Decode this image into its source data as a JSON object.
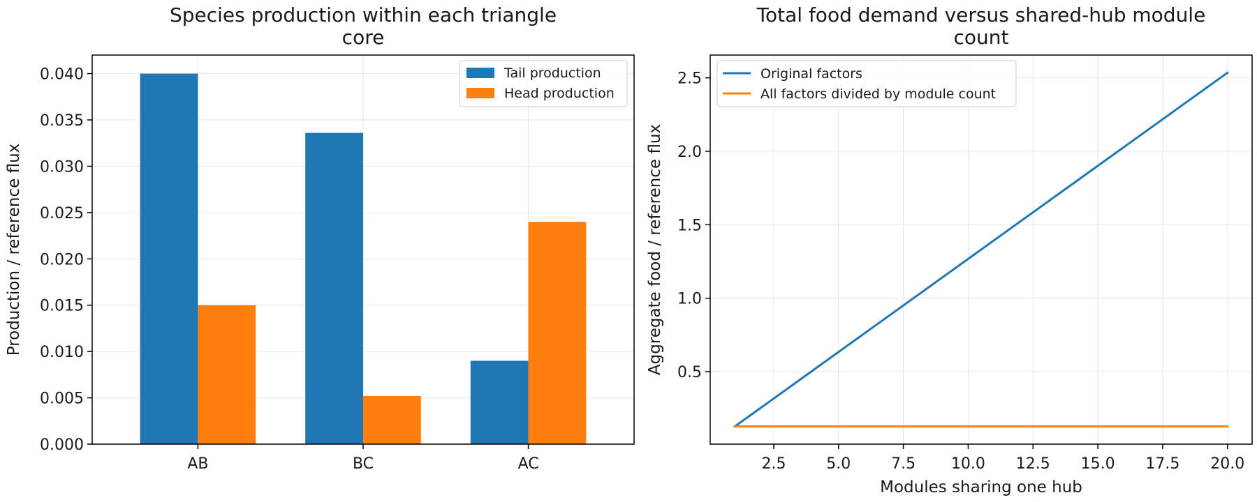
{
  "chart_data": [
    {
      "type": "bar",
      "title": [
        "Species production within each triangle",
        "core"
      ],
      "xlabel": "",
      "ylabel": "Production / reference flux",
      "categories": [
        "AB",
        "BC",
        "AC"
      ],
      "series": [
        {
          "name": "Tail production",
          "values": [
            0.04,
            0.0336,
            0.009
          ],
          "color": "#1f77b4"
        },
        {
          "name": "Head production",
          "values": [
            0.015,
            0.0052,
            0.024
          ],
          "color": "#ff7f0e"
        }
      ],
      "ylim": [
        0,
        0.042
      ],
      "yticks": [
        0,
        0.005,
        0.01,
        0.015,
        0.02,
        0.025,
        0.03,
        0.035,
        0.04
      ],
      "ytick_labels": [
        "0.000",
        "0.005",
        "0.010",
        "0.015",
        "0.020",
        "0.025",
        "0.030",
        "0.035",
        "0.040"
      ],
      "grid": true,
      "legend": "top-right"
    },
    {
      "type": "line",
      "title": [
        "Total food demand versus shared-hub module",
        "count"
      ],
      "xlabel": "Modules sharing one hub",
      "ylabel": "Aggregate food / reference flux",
      "series": [
        {
          "name": "Original factors",
          "x": [
            1,
            20
          ],
          "y": [
            0.127,
            2.535
          ],
          "color": "#1f77b4"
        },
        {
          "name": "All factors divided by module count",
          "x": [
            1,
            20
          ],
          "y": [
            0.127,
            0.127
          ],
          "color": "#ff7f0e"
        }
      ],
      "xlim": [
        0.05,
        20.95
      ],
      "ylim": [
        0.0066,
        2.655
      ],
      "xticks": [
        2.5,
        5,
        7.5,
        10,
        12.5,
        15,
        17.5,
        20
      ],
      "xtick_labels": [
        "2.5",
        "5.0",
        "7.5",
        "10.0",
        "12.5",
        "15.0",
        "17.5",
        "20.0"
      ],
      "yticks": [
        0.5,
        1,
        1.5,
        2,
        2.5
      ],
      "ytick_labels": [
        "0.5",
        "1.0",
        "1.5",
        "2.0",
        "2.5"
      ],
      "grid": true,
      "legend": "top-left"
    }
  ]
}
